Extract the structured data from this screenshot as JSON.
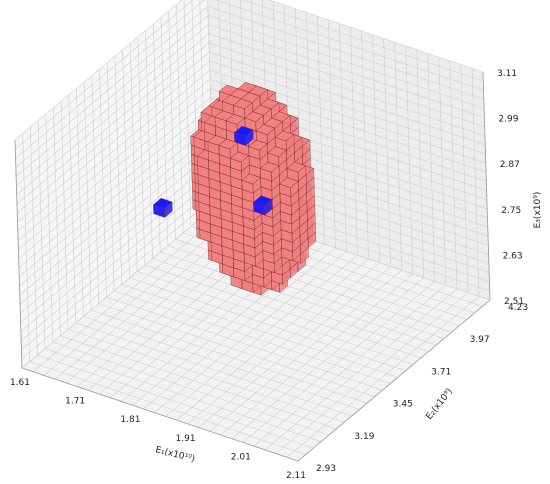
{
  "chart_data": {
    "type": "voxel-3d",
    "title": "",
    "axes": {
      "x": {
        "label": "E₁(x10¹⁰)",
        "ticks": [
          "1.61",
          "1.71",
          "1.81",
          "1.91",
          "2.01",
          "2.11"
        ],
        "range": [
          1.61,
          2.11
        ]
      },
      "y": {
        "label": "E₂(x10⁹)",
        "ticks": [
          "2.93",
          "3.19",
          "3.45",
          "3.71",
          "3.97",
          "4.23"
        ],
        "range": [
          2.93,
          4.23
        ]
      },
      "z": {
        "label": "E₃(x10⁹)",
        "ticks": [
          "2.51",
          "2.63",
          "2.75",
          "2.87",
          "2.99",
          "3.11"
        ],
        "range": [
          2.51,
          3.11
        ]
      }
    },
    "grid": true,
    "colors": {
      "region": "#f28080",
      "region_edge": "#6b2a2a",
      "highlight": "#1a1aff",
      "pane": "#f2f2f2",
      "gridline": "#cfcfcf"
    },
    "highlighted_voxels": 3
  }
}
